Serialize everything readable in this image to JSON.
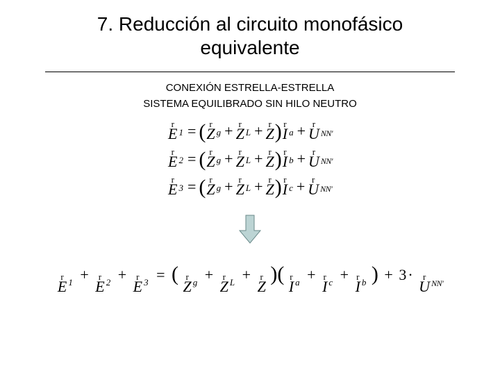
{
  "title_line1": "7. Reducción al circuito monofásico",
  "title_line2": "equivalente",
  "subtitle1": "CONEXIÓN ESTRELLA-ESTRELLA",
  "subtitle2": "SISTEMA EQUILIBRADO SIN HILO NEUTRO",
  "phasor_mark": "r",
  "sym": {
    "E": "E",
    "Z": "Z",
    "I": "I",
    "U": "U",
    "g": "g",
    "L": "L",
    "a": "a",
    "b": "b",
    "c": "c",
    "NN": "NN'",
    "one": "1",
    "two": "2",
    "three": "3",
    "plus": "+",
    "eq": "=",
    "dot": "·",
    "three_coef": "3"
  },
  "arrow": {
    "fill": "#bcd4d4",
    "stroke": "#6a8a8a",
    "width": 34,
    "height": 44
  },
  "style": {
    "bg": "#ffffff",
    "text": "#000000",
    "title_fontsize": 28,
    "subtitle_fontsize": 15,
    "eq_fontsize": 22,
    "eq_font": "Times New Roman"
  }
}
